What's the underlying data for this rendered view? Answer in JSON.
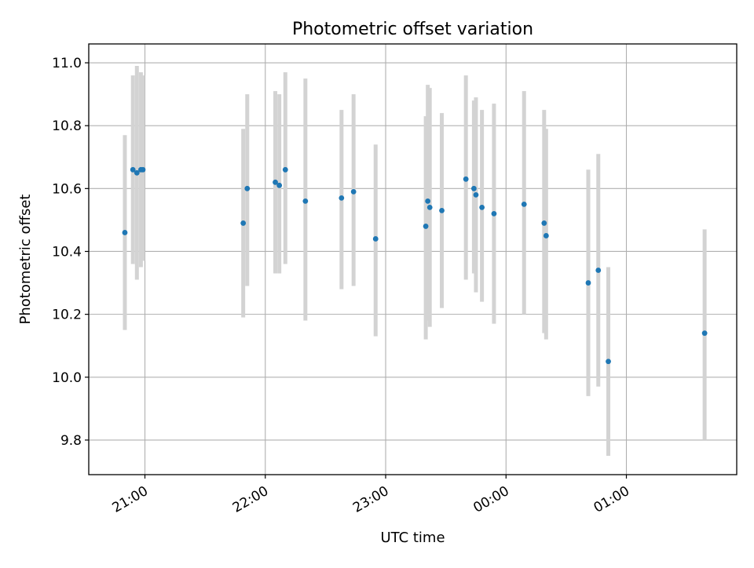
{
  "chart_data": {
    "type": "scatter",
    "title": "Photometric offset variation",
    "xlabel": "UTC time",
    "ylabel": "Photometric offset",
    "x_axis": {
      "kind": "time",
      "min": "20:32",
      "max": "01:55",
      "ticks": [
        "21:00",
        "22:00",
        "23:00",
        "00:00",
        "01:00"
      ],
      "tick_label_rotation_deg": 30
    },
    "y_axis": {
      "min": 9.69,
      "max": 11.06,
      "ticks": [
        9.8,
        10.0,
        10.2,
        10.4,
        10.6,
        10.8,
        11.0
      ],
      "tick_labels": [
        "9.8",
        "10.0",
        "10.2",
        "10.4",
        "10.6",
        "10.8",
        "11.0"
      ]
    },
    "grid": true,
    "colors": {
      "marker": "#1f77b4",
      "error_bar": "#d3d3d3",
      "grid": "#b0b0b0"
    },
    "series": [
      {
        "marker": "circle",
        "error_bars": "vertical",
        "points": [
          {
            "x": "20:50",
            "y": 10.46,
            "low": 10.15,
            "high": 10.77
          },
          {
            "x": "20:54",
            "y": 10.66,
            "low": 10.36,
            "high": 10.96
          },
          {
            "x": "20:56",
            "y": 10.65,
            "low": 10.31,
            "high": 10.99
          },
          {
            "x": "20:58",
            "y": 10.66,
            "low": 10.35,
            "high": 10.97
          },
          {
            "x": "20:59",
            "y": 10.66,
            "low": 10.37,
            "high": 10.96
          },
          {
            "x": "21:49",
            "y": 10.49,
            "low": 10.19,
            "high": 10.79
          },
          {
            "x": "21:51",
            "y": 10.6,
            "low": 10.29,
            "high": 10.9
          },
          {
            "x": "22:05",
            "y": 10.62,
            "low": 10.33,
            "high": 10.91
          },
          {
            "x": "22:07",
            "y": 10.61,
            "low": 10.33,
            "high": 10.9
          },
          {
            "x": "22:10",
            "y": 10.66,
            "low": 10.36,
            "high": 10.97
          },
          {
            "x": "22:20",
            "y": 10.56,
            "low": 10.18,
            "high": 10.95
          },
          {
            "x": "22:38",
            "y": 10.57,
            "low": 10.28,
            "high": 10.85
          },
          {
            "x": "22:44",
            "y": 10.59,
            "low": 10.29,
            "high": 10.9
          },
          {
            "x": "22:55",
            "y": 10.44,
            "low": 10.13,
            "high": 10.74
          },
          {
            "x": "23:20",
            "y": 10.48,
            "low": 10.12,
            "high": 10.83
          },
          {
            "x": "23:21",
            "y": 10.56,
            "low": 10.18,
            "high": 10.93
          },
          {
            "x": "23:22",
            "y": 10.54,
            "low": 10.16,
            "high": 10.92
          },
          {
            "x": "23:28",
            "y": 10.53,
            "low": 10.22,
            "high": 10.84
          },
          {
            "x": "23:40",
            "y": 10.63,
            "low": 10.31,
            "high": 10.96
          },
          {
            "x": "23:44",
            "y": 10.6,
            "low": 10.33,
            "high": 10.88
          },
          {
            "x": "23:45",
            "y": 10.58,
            "low": 10.27,
            "high": 10.89
          },
          {
            "x": "23:48",
            "y": 10.54,
            "low": 10.24,
            "high": 10.85
          },
          {
            "x": "23:54",
            "y": 10.52,
            "low": 10.17,
            "high": 10.87
          },
          {
            "x": "00:09",
            "y": 10.55,
            "low": 10.2,
            "high": 10.91
          },
          {
            "x": "00:19",
            "y": 10.49,
            "low": 10.14,
            "high": 10.85
          },
          {
            "x": "00:20",
            "y": 10.45,
            "low": 10.12,
            "high": 10.79
          },
          {
            "x": "00:41",
            "y": 10.3,
            "low": 9.94,
            "high": 10.66
          },
          {
            "x": "00:46",
            "y": 10.34,
            "low": 9.97,
            "high": 10.71
          },
          {
            "x": "00:51",
            "y": 10.05,
            "low": 9.75,
            "high": 10.35
          },
          {
            "x": "01:39",
            "y": 10.14,
            "low": 9.8,
            "high": 10.47
          }
        ]
      }
    ]
  }
}
